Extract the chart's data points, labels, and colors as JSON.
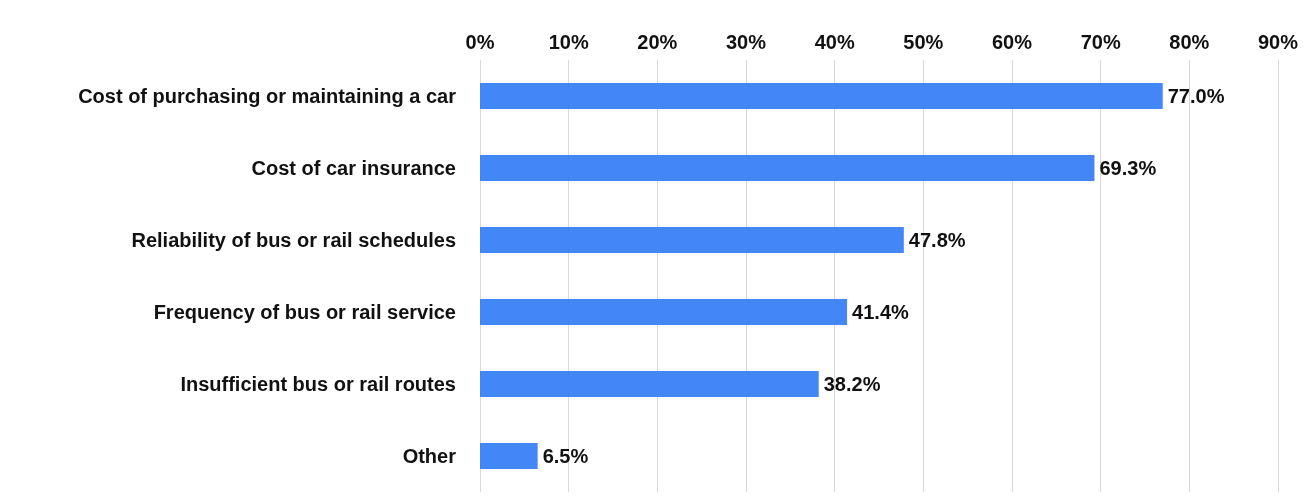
{
  "chart_data": {
    "type": "bar",
    "orientation": "horizontal",
    "categories": [
      "Cost of purchasing or maintaining a car",
      "Cost of car insurance",
      "Reliability of bus or rail schedules",
      "Frequency of bus or rail service",
      "Insufficient bus or rail routes",
      "Other"
    ],
    "values": [
      77.0,
      69.3,
      47.8,
      41.4,
      38.2,
      6.5
    ],
    "value_labels": [
      "77.0%",
      "69.3%",
      "47.8%",
      "41.4%",
      "38.2%",
      "6.5%"
    ],
    "color": "#4287f5",
    "xlim": [
      0,
      90
    ],
    "xticks": [
      {
        "value": 0,
        "label": "0%"
      },
      {
        "value": 10,
        "label": "10%"
      },
      {
        "value": 20,
        "label": "20%"
      },
      {
        "value": 30,
        "label": "30%"
      },
      {
        "value": 40,
        "label": "40%"
      },
      {
        "value": 50,
        "label": "50%"
      },
      {
        "value": 60,
        "label": "60%"
      },
      {
        "value": 70,
        "label": "70%"
      },
      {
        "value": 80,
        "label": "80%"
      },
      {
        "value": 90,
        "label": "90%"
      }
    ],
    "grid": "x"
  }
}
